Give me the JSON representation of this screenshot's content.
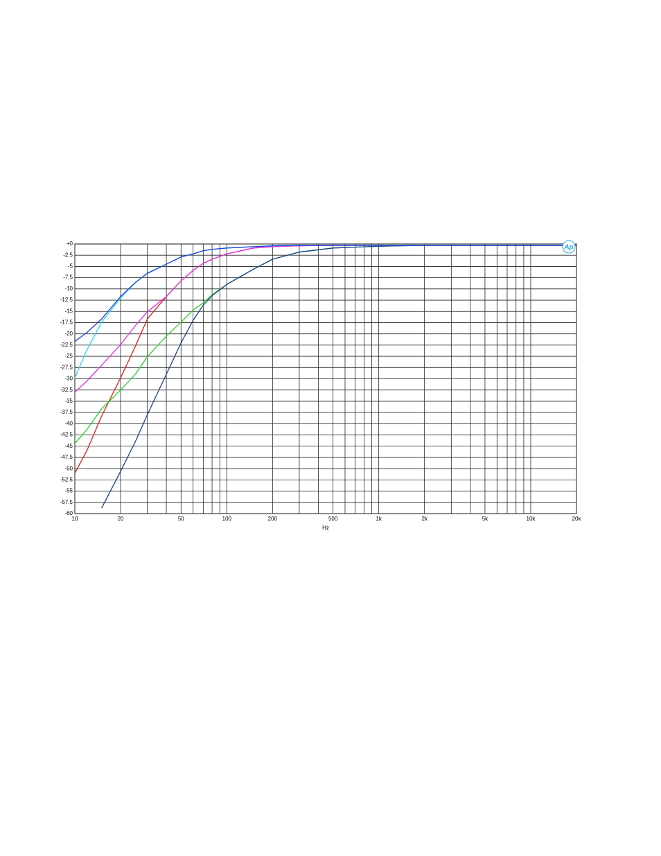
{
  "chart_data": {
    "type": "line",
    "xscale": "log",
    "grid": true,
    "x_label": "Hz",
    "logo": "Ap",
    "xlim": [
      10,
      20000
    ],
    "ylim": [
      -60,
      0
    ],
    "xticks": [
      10,
      20,
      50,
      100,
      200,
      500,
      {
        "value": 1000,
        "label": "1k"
      },
      {
        "value": 2000,
        "label": "2k"
      },
      {
        "value": 5000,
        "label": "5k"
      },
      {
        "value": 10000,
        "label": "10k"
      },
      {
        "value": 20000,
        "label": "20k"
      }
    ],
    "x_minor_ticks": [
      30,
      40,
      60,
      70,
      80,
      90,
      300,
      400,
      600,
      700,
      800,
      900,
      3000,
      4000,
      6000,
      7000,
      8000,
      9000
    ],
    "yticks": [
      {
        "value": 0,
        "label": "+0"
      },
      -2.5,
      -5,
      -7.5,
      -10,
      -12.5,
      -15,
      -17.5,
      -20,
      -22.5,
      -25,
      -27.5,
      -30,
      -32.5,
      -35,
      -37.5,
      -40,
      -42.5,
      -45,
      -47.5,
      -50,
      -52.5,
      -55,
      -57.5,
      -60
    ],
    "x": [
      10,
      12,
      15,
      20,
      25,
      30,
      40,
      50,
      60,
      70,
      80,
      100,
      150,
      200,
      300,
      500,
      1000,
      2000,
      5000,
      10000,
      20000
    ],
    "series": [
      {
        "color": "#e02020",
        "values": [
          -51,
          -46,
          -38.3,
          -29.8,
          -22.8,
          -16.7,
          -11.7,
          -8.2,
          -5.9,
          -4.3,
          -3.4,
          -2.2,
          -0.9,
          -0.6,
          -0.4,
          -0.3,
          -0.3,
          -0.3,
          -0.3,
          -0.3,
          -0.3
        ]
      },
      {
        "color": "#e030e0",
        "values": [
          -33,
          -30.5,
          -27,
          -22.4,
          -18.2,
          -15.1,
          -11.7,
          -8.2,
          -5.9,
          -4.3,
          -3.4,
          -2.2,
          -0.9,
          -0.6,
          -0.4,
          -0.3,
          -0.3,
          -0.3,
          -0.3,
          -0.3,
          -0.3
        ]
      },
      {
        "color": "#22d822",
        "values": [
          -44.4,
          -41.3,
          -36.7,
          -32.5,
          -29,
          -25.1,
          -20.5,
          -17.4,
          -14.7,
          -13.1,
          -11.3,
          -9,
          -5.6,
          -3.4,
          -1.8,
          -0.9,
          -0.5,
          -0.3,
          -0.3,
          -0.3,
          -0.3
        ]
      },
      {
        "color": "#1c3c8c",
        "values": [
          null,
          null,
          -58.8,
          -50.6,
          -44,
          -38,
          -29,
          -22,
          -17,
          -13.6,
          -11.5,
          -9,
          -5.6,
          -3.4,
          -1.8,
          -0.9,
          -0.5,
          -0.3,
          -0.3,
          -0.3,
          -0.3
        ]
      },
      {
        "color": "#22d8f0",
        "values": [
          -29.8,
          -23.6,
          -17.4,
          -12,
          -8.6,
          -6.6,
          -4.5,
          -2.9,
          -2.2,
          -1.5,
          -1.2,
          -0.9,
          -0.6,
          -0.4,
          -0.3,
          -0.3,
          -0.3,
          -0.3,
          -0.3,
          -0.3,
          -0.3
        ]
      },
      {
        "color": "#1f3fd8",
        "values": [
          -21.7,
          -19.7,
          -16.7,
          -11.7,
          -8.6,
          -6.5,
          -4.5,
          -2.9,
          -2.2,
          -1.5,
          -1.2,
          -0.9,
          -0.6,
          -0.4,
          -0.3,
          -0.3,
          -0.3,
          -0.3,
          -0.3,
          -0.3,
          -0.3
        ]
      }
    ]
  }
}
